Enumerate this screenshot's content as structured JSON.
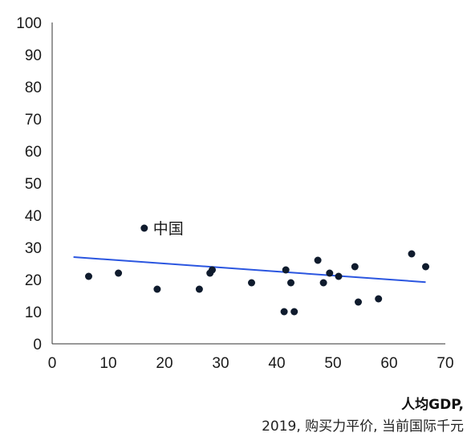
{
  "chart_data": {
    "type": "scatter",
    "x_ticks": [
      "0",
      "10",
      "20",
      "30",
      "40",
      "50",
      "60",
      "70"
    ],
    "y_ticks": [
      "0",
      "10",
      "20",
      "30",
      "40",
      "50",
      "60",
      "70",
      "80",
      "90",
      "100"
    ],
    "xlim": [
      0,
      70
    ],
    "ylim": [
      0,
      100
    ],
    "xlabel_line1": "人均GDP,",
    "xlabel_line2": "2019, 购买力平价, 当前国际千元",
    "points": [
      {
        "x": 6.5,
        "y": 21
      },
      {
        "x": 11.8,
        "y": 22
      },
      {
        "x": 16.4,
        "y": 36,
        "label": "中国"
      },
      {
        "x": 18.7,
        "y": 17
      },
      {
        "x": 26.2,
        "y": 17
      },
      {
        "x": 28.1,
        "y": 22
      },
      {
        "x": 28.5,
        "y": 23
      },
      {
        "x": 35.5,
        "y": 19
      },
      {
        "x": 41.3,
        "y": 10
      },
      {
        "x": 41.6,
        "y": 23
      },
      {
        "x": 42.5,
        "y": 19
      },
      {
        "x": 43.1,
        "y": 10
      },
      {
        "x": 47.3,
        "y": 26
      },
      {
        "x": 48.3,
        "y": 19
      },
      {
        "x": 49.4,
        "y": 22
      },
      {
        "x": 51.0,
        "y": 21
      },
      {
        "x": 53.9,
        "y": 24
      },
      {
        "x": 54.5,
        "y": 13
      },
      {
        "x": 58.1,
        "y": 14
      },
      {
        "x": 64.0,
        "y": 28
      },
      {
        "x": 66.5,
        "y": 24
      }
    ],
    "trendline": {
      "x": [
        3.8,
        66.5
      ],
      "y": [
        27,
        19.2
      ],
      "color": "#2b56e0"
    },
    "point_color": "#0f1b2d",
    "grid": false
  }
}
